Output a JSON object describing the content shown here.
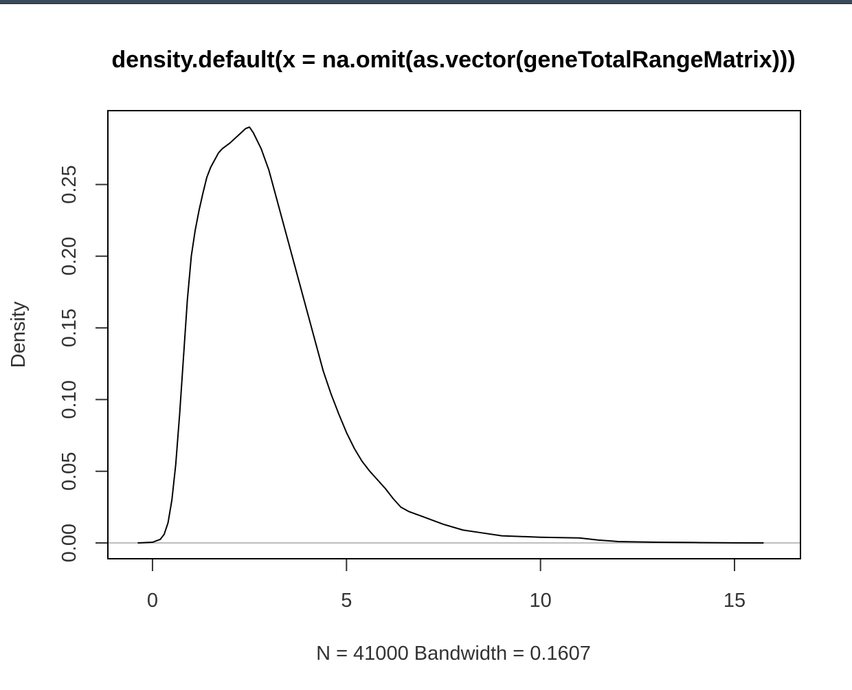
{
  "chart_data": {
    "type": "line",
    "title": "density.default(x = na.omit(as.vector(geneTotalRangeMatrix)))",
    "xlabel": "N = 41000   Bandwidth = 0.1607",
    "ylabel": "Density",
    "xlim": [
      -1.15,
      16.7
    ],
    "ylim": [
      -0.011,
      0.3015
    ],
    "x_ticks": [
      0,
      5,
      10,
      15
    ],
    "x_tick_labels": [
      "0",
      "5",
      "10",
      "15"
    ],
    "y_ticks": [
      0.0,
      0.05,
      0.1,
      0.15,
      0.2,
      0.25
    ],
    "y_tick_labels": [
      "0.00",
      "0.05",
      "0.10",
      "0.15",
      "0.20",
      "0.25"
    ],
    "baseline": 0,
    "grid": false,
    "colors": {
      "line": "#000000",
      "baseline": "#bebebe",
      "frame": "#000000",
      "ticks": "#333333"
    },
    "series": [
      {
        "x": [
          -0.38,
          0.0,
          0.2,
          0.3,
          0.4,
          0.5,
          0.6,
          0.7,
          0.8,
          0.9,
          1.0,
          1.1,
          1.2,
          1.3,
          1.4,
          1.5,
          1.6,
          1.7,
          1.8,
          2.0,
          2.2,
          2.4,
          2.5,
          2.6,
          2.8,
          3.0,
          3.2,
          3.4,
          3.6,
          3.8,
          4.0,
          4.2,
          4.4,
          4.6,
          4.8,
          5.0,
          5.2,
          5.4,
          5.6,
          5.8,
          6.0,
          6.2,
          6.4,
          6.6,
          7.0,
          7.5,
          8.0,
          8.5,
          9.0,
          10.0,
          11.0,
          11.5,
          12.0,
          13.0,
          14.0,
          15.0,
          15.75
        ],
        "y": [
          0.0,
          0.0005,
          0.0025,
          0.006,
          0.014,
          0.03,
          0.055,
          0.09,
          0.13,
          0.17,
          0.2,
          0.218,
          0.232,
          0.244,
          0.255,
          0.262,
          0.267,
          0.272,
          0.275,
          0.279,
          0.284,
          0.289,
          0.29,
          0.286,
          0.275,
          0.26,
          0.24,
          0.22,
          0.2,
          0.18,
          0.16,
          0.14,
          0.12,
          0.104,
          0.09,
          0.077,
          0.066,
          0.057,
          0.05,
          0.044,
          0.038,
          0.031,
          0.025,
          0.022,
          0.018,
          0.013,
          0.009,
          0.007,
          0.005,
          0.004,
          0.0035,
          0.002,
          0.001,
          0.0005,
          0.0003,
          0.0001,
          0.0
        ]
      }
    ]
  }
}
